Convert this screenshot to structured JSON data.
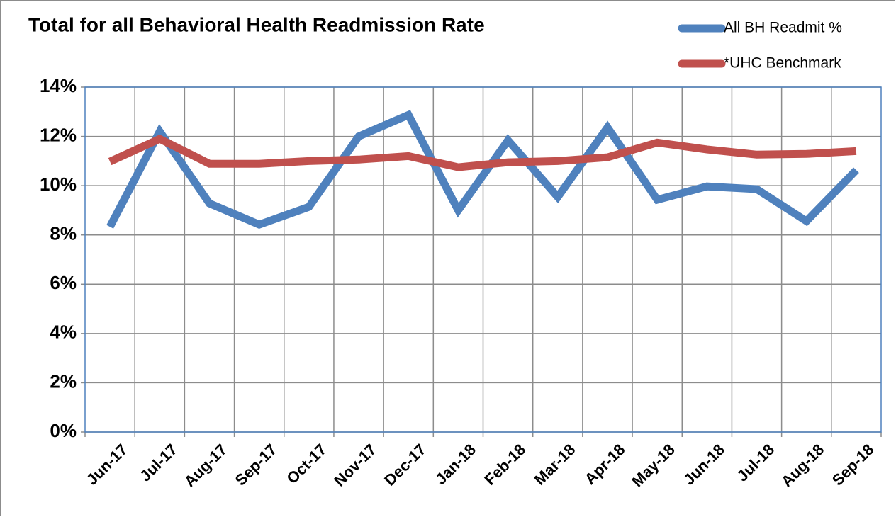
{
  "chart_data": {
    "type": "line",
    "title": "Total for all Behavioral Health Readmission Rate",
    "categories": [
      "Jun-17",
      "Jul-17",
      "Aug-17",
      "Sep-17",
      "Oct-17",
      "Nov-17",
      "Dec-17",
      "Jan-18",
      "Feb-18",
      "Mar-18",
      "Apr-18",
      "May-18",
      "Jun-18",
      "Jul-18",
      "Aug-18",
      "Sep-18"
    ],
    "series": [
      {
        "name": "All BH Readmit %",
        "color": "#4f81bd",
        "values": [
          8.33,
          12.2,
          9.28,
          8.42,
          9.14,
          12.0,
          12.87,
          9.0,
          11.84,
          9.54,
          12.36,
          9.43,
          9.97,
          9.86,
          8.56,
          10.63
        ]
      },
      {
        "name": "*UHC Benchmark",
        "color": "#c0504d",
        "values": [
          10.98,
          11.9,
          10.89,
          10.89,
          11.0,
          11.06,
          11.2,
          10.75,
          10.95,
          11.0,
          11.15,
          11.75,
          11.47,
          11.26,
          11.29,
          11.4
        ]
      }
    ],
    "ylim": [
      0,
      14
    ],
    "yticks": [
      {
        "value": 0,
        "label": "0%"
      },
      {
        "value": 2,
        "label": "2%"
      },
      {
        "value": 4,
        "label": "4%"
      },
      {
        "value": 6,
        "label": "6%"
      },
      {
        "value": 8,
        "label": "8%"
      },
      {
        "value": 10,
        "label": "10%"
      },
      {
        "value": 12,
        "label": "12%"
      },
      {
        "value": 14,
        "label": "14%"
      }
    ],
    "grid": true,
    "legend": "top-right"
  }
}
